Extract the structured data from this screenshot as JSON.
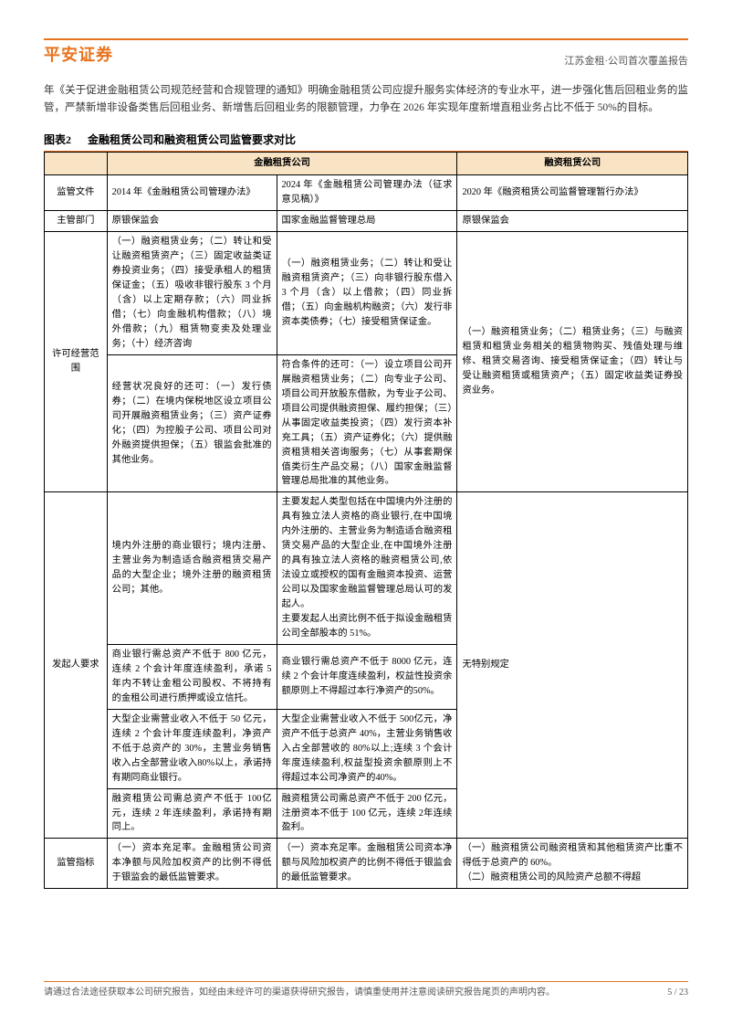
{
  "header": {
    "logo": "平安证券",
    "right": "江苏金租·公司首次覆盖报告"
  },
  "intro": "年《关于促进金融租赁公司规范经营和合规管理的通知》明确金融租赁公司应提升服务实体经济的专业水平，进一步强化售后回租业务的监管，严禁新增非设备类售后回租业务、新增售后回租业务的限额管理，力争在 2026 年实现年度新增直租业务占比不低于 50%的目标。",
  "figure": {
    "label": "图表2",
    "title": "金融租赁公司和融资租赁公司监管要求对比"
  },
  "table": {
    "headers": {
      "blank": "",
      "fin_lease": "金融租赁公司",
      "fin_asset": "融资租赁公司"
    },
    "rows": {
      "doc": {
        "label": "监管文件",
        "c1": "2014 年《金融租赁公司管理办法》",
        "c2": "2024 年《金融租赁公司管理办法（征求意见稿）》",
        "c3": "2020 年《融资租赁公司监督管理暂行办法》"
      },
      "dept": {
        "label": "主管部门",
        "c1": "原银保监会",
        "c2": "国家金融监督管理总局",
        "c3": "原银保监会"
      },
      "scope": {
        "label": "许可经营范围",
        "c1a": "（一）融资租赁业务；（二）转让和受让融资租赁资产；（三）固定收益类证券投资业务；（四）接受承租人的租赁保证金；（五）吸收非银行股东 3 个月（含）以上定期存款；（六）同业拆借；（七）向金融机构借款；（八）境外借款；（九）租赁物变卖及处理业务；（十）经济咨询",
        "c2a": "（一）融资租赁业务；（二）转让和受让融资租赁资产；（三）向非银行股东借入 3 个月（含）以上借款；（四）同业拆借；（五）向金融机构融资；（六）发行非资本类债券；（七）接受租赁保证金。",
        "c1b": "经营状况良好的还可：（一）发行债券；（二）在境内保税地区设立项目公司开展融资租赁业务；（三）资产证券化；（四）为控股子公司、项目公司对外融资提供担保；（五）银监会批准的其他业务。",
        "c2b": "符合条件的还可：（一）设立项目公司开展融资租赁业务；（二）向专业子公司、项目公司开放股东借款，为专业子公司、项目公司提供融资担保、履约担保；（三）从事固定收益类投资；（四）发行资本补充工具；（五）资产证券化；（六）提供融资租赁相关咨询服务；（七）从事套期保值类衍生产品交易；（八）国家金融监督管理总局批准的其他业务。",
        "c3": "（一）融资租赁业务；（二）租赁业务；（三）与融资租赁和租赁业务相关的租赁物购买、残值处理与维修、租赁交易咨询、接受租赁保证金；（四）转让与受让融资租赁或租赁资产；（五）固定收益类证券投资业务。"
      },
      "sponsor": {
        "label": "发起人要求",
        "c1a": "境内外注册的商业银行；境内注册、主营业务为制造适合融资租赁交易产品的大型企业；境外注册的融资租赁公司；其他。",
        "c2a": "主要发起人类型包括在中国境内外注册的具有独立法人资格的商业银行,在中国境内外注册的、主营业务为制造适合融资租赁交易产品的大型企业,在中国境外注册的具有独立法人资格的融资租赁公司,依法设立或授权的国有金融资本投资、运营公司以及国家金融监督管理总局认可的发起人。\n主要发起人出资比例不低于拟设金融租赁公司全部股本的 51%。",
        "c1b": "商业银行需总资产不低于 800 亿元，连续 2 个会计年度连续盈利，承诺 5 年内不转让金租公司股权、不将持有的金租公司进行质押或设立信托。",
        "c2b": "商业银行需总资产不低于 8000 亿元，连续 2 个会计年度连续盈利，权益性投资余额原则上不得超过本行净资产的50%。",
        "c1c": "大型企业需营业收入不低于 50 亿元，连续 2 个会计年度连续盈利，净资产不低于总资产的 30%，主营业务销售收入占全部营业收入80%以上，承诺持有期同商业银行。",
        "c2c": "大型企业需营业收入不低于 500亿元，净资产不低于总资产 40%，主营业务销售收入占全部营收的 80%以上;连续 3 个会计年度连续盈利,权益型投资余额原则上不得超过本公司净资产的40%。",
        "c1d": "融资租赁公司需总资产不低于 100亿元，连续 2 年连续盈利，承诺持有期同上。",
        "c2d": "融资租赁公司需总资产不低于 200 亿元，注册资本不低于 100 亿元，连续 2年连续盈利。",
        "c3": "无特别规定"
      },
      "metric": {
        "label": "监管指标",
        "c1": "（一）资本充足率。金融租赁公司资本净额与风险加权资产的比例不得低于银监会的最低监管要求。",
        "c2": "（一）资本充足率。金融租赁公司资本净额与风险加权资产的比例不得低于银监会的最低监管要求。",
        "c3": "（一）融资租赁公司融资租赁和其他租赁资产比重不得低于总资产的 60%。\n（二）融资租赁公司的风险资产总额不得超"
      }
    }
  },
  "footer": {
    "note": "请通过合法途径获取本公司研究报告，如经由未经许可的渠道获得研究报告，请慎重使用并注意阅读研究报告尾页的声明内容。",
    "page": "5 / 23"
  }
}
